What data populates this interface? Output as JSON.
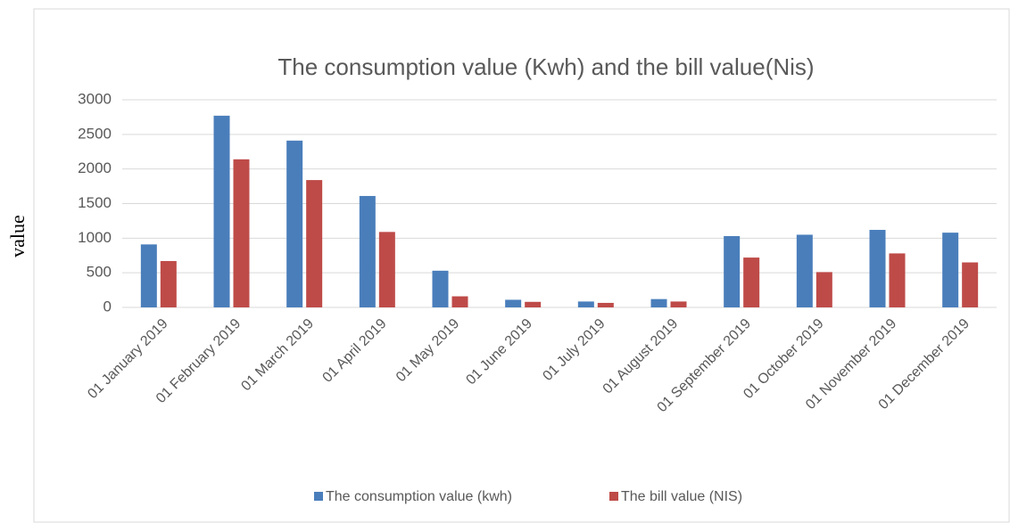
{
  "chart_data": {
    "type": "bar",
    "title": "The consumption value (Kwh) and the bill value(Nis)",
    "y_label": "value",
    "categories": [
      "01 January 2019",
      "01 February 2019",
      "01 March 2019",
      "01 April 2019",
      "01 May 2019",
      "01 June 2019",
      "01 July 2019",
      "01 August 2019",
      "01 September 2019",
      "01 October 2019",
      "01 November 2019",
      "01 December 2019"
    ],
    "series": [
      {
        "name": "The consumption value (kwh)",
        "color": "#4a7ebb",
        "values": [
          910,
          2770,
          2410,
          1610,
          530,
          110,
          85,
          120,
          1030,
          1050,
          1120,
          1080
        ]
      },
      {
        "name": "The bill value (NIS)",
        "color": "#be4b48",
        "values": [
          670,
          2140,
          1840,
          1090,
          160,
          80,
          65,
          85,
          720,
          510,
          780,
          650
        ]
      }
    ],
    "ylim": [
      0,
      3000
    ],
    "yticks": [
      0,
      500,
      1000,
      1500,
      2000,
      2500,
      3000
    ],
    "grid": true,
    "legend": "bottom"
  }
}
